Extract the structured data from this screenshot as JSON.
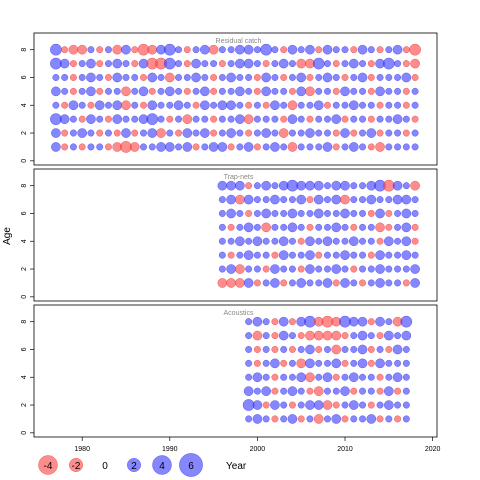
{
  "chart_data": {
    "type": "bubble",
    "x_label": "Year",
    "y_label": "Age",
    "x_ticks": [
      1980,
      1990,
      2000,
      2010,
      2020
    ],
    "y_ticks": [
      0,
      2,
      4,
      6,
      8
    ],
    "xlim": [
      1974.5,
      2020.5
    ],
    "ylim": [
      -0.3,
      9.2
    ],
    "ages": [
      1,
      2,
      3,
      4,
      5,
      6,
      7,
      8
    ],
    "colors": {
      "positive": "#3c3cff",
      "negative": "#ff4646"
    },
    "legend": {
      "title": "Year",
      "values": [
        -4,
        -2,
        0,
        2,
        4,
        6
      ],
      "labels": [
        "-4",
        "-2",
        "0",
        "2",
        "4",
        "6"
      ]
    },
    "panels": [
      {
        "title": "Residual catch",
        "years": [
          1977,
          2018
        ],
        "residuals": [
          [
            2,
            -1,
            1,
            -1,
            1,
            1,
            -1,
            -2,
            -3,
            -2,
            1,
            1,
            2,
            2,
            1,
            2,
            -1,
            1,
            2,
            2,
            -1,
            1,
            2,
            -1,
            1,
            2,
            1,
            -2,
            1,
            1,
            1,
            2,
            -1,
            1,
            2,
            1,
            -1,
            -2,
            1,
            1,
            1,
            1
          ],
          [
            2,
            -1,
            1,
            2,
            1,
            -1,
            1,
            -1,
            2,
            -1,
            1,
            2,
            -2,
            1,
            -1,
            2,
            1,
            2,
            -1,
            1,
            2,
            1,
            -1,
            1,
            2,
            1,
            -2,
            1,
            1,
            2,
            1,
            1,
            -1,
            2,
            -1,
            1,
            2,
            -1,
            1,
            1,
            -1,
            1
          ],
          [
            3,
            2,
            1,
            -1,
            2,
            1,
            -1,
            2,
            1,
            1,
            2,
            3,
            1,
            -1,
            1,
            -2,
            1,
            1,
            -1,
            1,
            1,
            2,
            -2,
            1,
            1,
            1,
            -1,
            2,
            1,
            -1,
            1,
            1,
            2,
            -1,
            1,
            1,
            -1,
            1,
            1,
            2,
            1,
            -1
          ],
          [
            1,
            -1,
            2,
            1,
            -1,
            2,
            1,
            2,
            -2,
            1,
            -1,
            2,
            1,
            1,
            2,
            1,
            -1,
            2,
            1,
            2,
            2,
            1,
            -1,
            1,
            -1,
            2,
            1,
            -2,
            1,
            1,
            2,
            -1,
            1,
            1,
            2,
            1,
            1,
            -1,
            1,
            1,
            -1,
            1
          ],
          [
            2,
            1,
            -1,
            1,
            2,
            -1,
            1,
            1,
            -2,
            1,
            2,
            -1,
            1,
            2,
            1,
            -1,
            1,
            2,
            -1,
            1,
            1,
            2,
            1,
            -1,
            2,
            1,
            1,
            -1,
            2,
            -2,
            1,
            1,
            -1,
            2,
            1,
            1,
            -1,
            2,
            1,
            1,
            -1,
            1
          ],
          [
            1,
            1,
            -1,
            1,
            2,
            1,
            -1,
            2,
            1,
            1,
            -1,
            2,
            1,
            -2,
            1,
            1,
            2,
            1,
            -1,
            1,
            2,
            1,
            1,
            -1,
            2,
            1,
            -1,
            1,
            2,
            -1,
            1,
            2,
            1,
            -1,
            1,
            2,
            -1,
            1,
            1,
            1,
            2,
            -1
          ],
          [
            3,
            2,
            -1,
            1,
            2,
            -1,
            1,
            2,
            1,
            -1,
            2,
            -3,
            -3,
            3,
            1,
            -1,
            2,
            1,
            1,
            -1,
            1,
            2,
            2,
            1,
            -1,
            1,
            2,
            1,
            -2,
            -2,
            3,
            1,
            -1,
            1,
            2,
            1,
            -1,
            2,
            3,
            1,
            -1,
            -2
          ],
          [
            3,
            -1,
            -2,
            -2,
            1,
            -1,
            1,
            -2,
            2,
            -1,
            -3,
            -2,
            2,
            3,
            1,
            -1,
            1,
            2,
            -2,
            1,
            1,
            2,
            2,
            1,
            3,
            1,
            -1,
            2,
            1,
            2,
            -1,
            2,
            1,
            1,
            -1,
            2,
            1,
            -1,
            1,
            2,
            -1,
            -3
          ]
        ]
      },
      {
        "title": "Trap-nets",
        "years": [
          1996,
          2018
        ],
        "residuals": [
          [
            -2,
            -2,
            -2,
            2,
            -1,
            1,
            2,
            -1,
            1,
            2,
            1,
            1,
            2,
            -1,
            2,
            1,
            -1,
            1,
            2,
            1,
            1,
            -1,
            2
          ],
          [
            1,
            2,
            -2,
            1,
            1,
            -1,
            2,
            1,
            1,
            -1,
            2,
            1,
            1,
            2,
            1,
            -1,
            1,
            1,
            2,
            1,
            1,
            1,
            2
          ],
          [
            1,
            -1,
            1,
            2,
            1,
            1,
            -1,
            2,
            1,
            1,
            2,
            -1,
            1,
            1,
            2,
            1,
            1,
            -1,
            2,
            1,
            1,
            2,
            1
          ],
          [
            1,
            1,
            2,
            1,
            2,
            1,
            1,
            2,
            1,
            -1,
            2,
            1,
            2,
            1,
            1,
            2,
            1,
            1,
            -1,
            2,
            1,
            2,
            -1
          ],
          [
            1,
            -1,
            1,
            2,
            1,
            -2,
            1,
            1,
            2,
            1,
            -1,
            1,
            1,
            2,
            1,
            -1,
            1,
            1,
            -2,
            -1,
            1,
            2,
            -1
          ],
          [
            1,
            2,
            1,
            -1,
            1,
            2,
            1,
            1,
            2,
            1,
            1,
            2,
            1,
            1,
            2,
            1,
            1,
            -1,
            2,
            -1,
            1,
            2,
            1
          ],
          [
            1,
            2,
            -2,
            2,
            1,
            1,
            2,
            1,
            1,
            2,
            -1,
            2,
            1,
            2,
            -2,
            1,
            1,
            2,
            1,
            1,
            2,
            2,
            1
          ],
          [
            2,
            2,
            2,
            -1,
            1,
            2,
            1,
            2,
            3,
            2,
            2,
            2,
            1,
            2,
            2,
            1,
            1,
            2,
            3,
            -3,
            2,
            1,
            -2
          ]
        ]
      },
      {
        "title": "Acoustics",
        "years": [
          1999,
          2017
        ],
        "residuals": [
          [
            1,
            2,
            1,
            -1,
            1,
            2,
            -1,
            1,
            -2,
            1,
            2,
            -1,
            1,
            1,
            2,
            -1,
            1,
            -1,
            1
          ],
          [
            3,
            2,
            -1,
            2,
            1,
            -1,
            1,
            2,
            2,
            -2,
            -1,
            1,
            2,
            1,
            -1,
            1,
            2,
            1,
            1
          ],
          [
            2,
            1,
            2,
            -1,
            1,
            2,
            1,
            -1,
            -2,
            1,
            1,
            2,
            -1,
            1,
            1,
            -1,
            2,
            -1,
            1
          ],
          [
            1,
            2,
            1,
            -1,
            1,
            1,
            2,
            -2,
            1,
            2,
            -1,
            1,
            2,
            1,
            1,
            -1,
            1,
            2,
            1
          ],
          [
            1,
            -1,
            1,
            2,
            -1,
            1,
            -2,
            2,
            1,
            1,
            2,
            -1,
            1,
            2,
            -1,
            2,
            1,
            1,
            1
          ],
          [
            1,
            -1,
            1,
            -1,
            1,
            -1,
            1,
            2,
            -1,
            1,
            -2,
            1,
            1,
            2,
            -1,
            1,
            -1,
            2,
            1
          ],
          [
            1,
            -2,
            1,
            -1,
            2,
            1,
            -1,
            -2,
            -2,
            -2,
            -2,
            -1,
            1,
            2,
            1,
            -1,
            2,
            1,
            2
          ],
          [
            1,
            2,
            1,
            -1,
            2,
            -1,
            2,
            3,
            -2,
            -3,
            -2,
            3,
            2,
            2,
            -1,
            2,
            1,
            -2,
            3
          ]
        ]
      }
    ]
  }
}
